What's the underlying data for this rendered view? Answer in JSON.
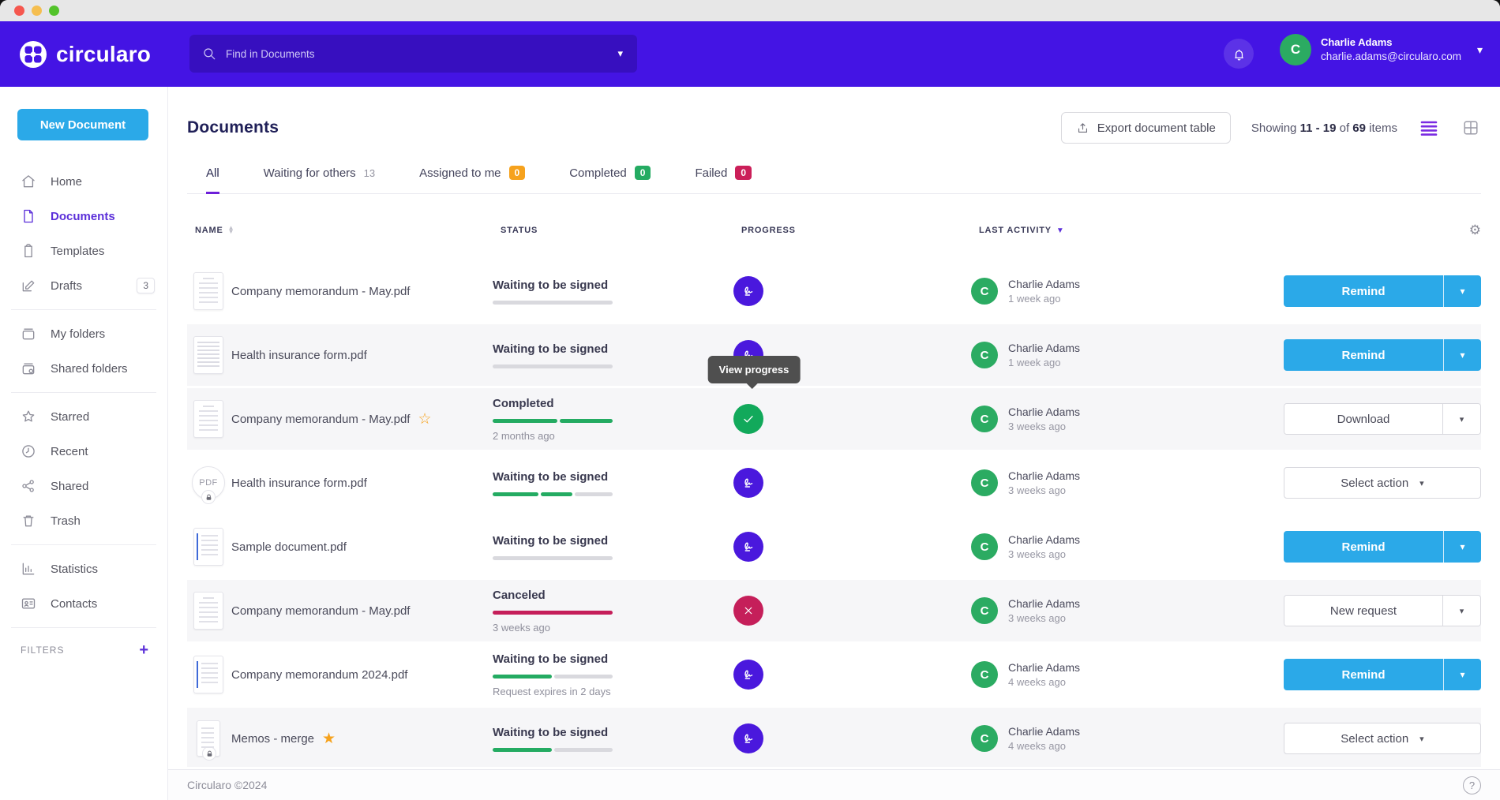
{
  "header": {
    "brand": "circularo",
    "search": {
      "placeholder": "Find in Documents"
    },
    "user": {
      "initial": "C",
      "name": "Charlie Adams",
      "email": "charlie.adams@circularo.com"
    }
  },
  "sidebar": {
    "new_document": "New Document",
    "items": [
      {
        "label": "Home"
      },
      {
        "label": "Documents"
      },
      {
        "label": "Templates"
      },
      {
        "label": "Drafts",
        "count": "3"
      },
      {
        "label": "My folders"
      },
      {
        "label": "Shared folders"
      },
      {
        "label": "Starred"
      },
      {
        "label": "Recent"
      },
      {
        "label": "Shared"
      },
      {
        "label": "Trash"
      },
      {
        "label": "Statistics"
      },
      {
        "label": "Contacts"
      }
    ],
    "filters_label": "FILTERS"
  },
  "page": {
    "title": "Documents",
    "export_label": "Export document table",
    "showing": {
      "prefix": "Showing",
      "range": "11 - 19",
      "of": "of",
      "total": "69",
      "suffix": "items"
    }
  },
  "tabs": [
    {
      "label": "All"
    },
    {
      "label": "Waiting for others",
      "count": "13"
    },
    {
      "label": "Assigned to me",
      "count": "0"
    },
    {
      "label": "Completed",
      "count": "0"
    },
    {
      "label": "Failed",
      "count": "0"
    }
  ],
  "table": {
    "columns": {
      "name": "NAME",
      "status": "STATUS",
      "progress": "PROGRESS",
      "activity": "LAST ACTIVITY"
    }
  },
  "tooltip": {
    "text": "View progress"
  },
  "rows": [
    {
      "name": "Company memorandum - May.pdf",
      "status": "Waiting to be signed",
      "substatus": "",
      "progress": [
        {
          "color": "gray",
          "pct": 100
        }
      ],
      "who": "Charlie Adams",
      "when": "1 week ago",
      "avatar_initial": "C",
      "action_label": "Remind"
    },
    {
      "name": "Health insurance form.pdf",
      "status": "Waiting to be signed",
      "substatus": "",
      "progress": [
        {
          "color": "gray",
          "pct": 100
        }
      ],
      "who": "Charlie Adams",
      "when": "1 week ago",
      "avatar_initial": "C",
      "action_label": "Remind"
    },
    {
      "name": "Company memorandum - May.pdf",
      "status": "Completed",
      "substatus": "2 months ago",
      "progress": [
        {
          "color": "green",
          "pct": 55
        },
        {
          "color": "green",
          "pct": 45
        }
      ],
      "who": "Charlie Adams",
      "when": "3 weeks ago",
      "avatar_initial": "C",
      "action_label": "Download"
    },
    {
      "name": "Health insurance form.pdf",
      "status": "Waiting to be signed",
      "substatus": "",
      "progress": [
        {
          "color": "green",
          "pct": 40
        },
        {
          "color": "green",
          "pct": 27
        },
        {
          "color": "gray",
          "pct": 33
        }
      ],
      "who": "Charlie Adams",
      "when": "3 weeks ago",
      "avatar_initial": "C",
      "action_label": "Select action"
    },
    {
      "name": "Sample document.pdf",
      "status": "Waiting to be signed",
      "substatus": "",
      "progress": [
        {
          "color": "gray",
          "pct": 100
        }
      ],
      "who": "Charlie Adams",
      "when": "3 weeks ago",
      "avatar_initial": "C",
      "action_label": "Remind"
    },
    {
      "name": "Company memorandum - May.pdf",
      "status": "Canceled",
      "substatus": "3 weeks ago",
      "progress": [
        {
          "color": "red",
          "pct": 100
        }
      ],
      "who": "Charlie Adams",
      "when": "3 weeks ago",
      "avatar_initial": "C",
      "action_label": "New request"
    },
    {
      "name": "Company memorandum 2024.pdf",
      "status": "Waiting to be signed",
      "substatus": "Request expires in 2 days",
      "progress": [
        {
          "color": "green",
          "pct": 50
        },
        {
          "color": "gray",
          "pct": 50
        }
      ],
      "who": "Charlie Adams",
      "when": "4 weeks ago",
      "avatar_initial": "C",
      "action_label": "Remind"
    },
    {
      "name": "Memos - merge",
      "status": "Waiting to be signed",
      "substatus": "",
      "progress": [
        {
          "color": "green",
          "pct": 50
        },
        {
          "color": "gray",
          "pct": 50
        }
      ],
      "who": "Charlie Adams",
      "when": "4 weeks ago",
      "avatar_initial": "C",
      "action_label": "Select action"
    }
  ],
  "footer": {
    "copyright": "Circularo ©2024"
  },
  "icons": {
    "caret_down": "▾",
    "sort_up": "▲",
    "sort_down": "▼",
    "gear": "⚙",
    "plus": "+",
    "help": "?",
    "star_outline": "☆",
    "star_filled": "★",
    "pdf_label": "PDF"
  }
}
